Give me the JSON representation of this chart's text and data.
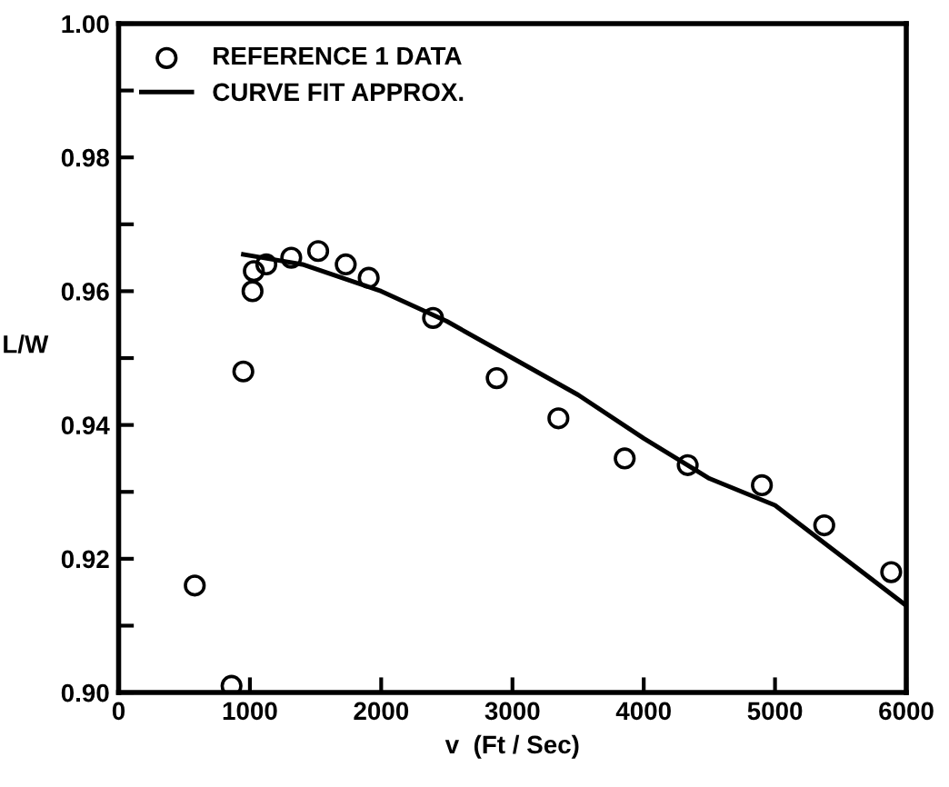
{
  "chart_data": {
    "type": "scatter",
    "xlabel": "v  (Ft / Sec)",
    "ylabel": "L/W",
    "xlim": [
      0,
      6000
    ],
    "ylim": [
      0.9,
      1.0
    ],
    "xticks": [
      0,
      1000,
      2000,
      3000,
      4000,
      5000,
      6000
    ],
    "yticks": [
      {
        "value": 0.9,
        "label": "0.90"
      },
      {
        "value": 0.91,
        "label": null
      },
      {
        "value": 0.92,
        "label": "0.92"
      },
      {
        "value": 0.93,
        "label": null
      },
      {
        "value": 0.94,
        "label": "0.94"
      },
      {
        "value": 0.95,
        "label": null
      },
      {
        "value": 0.96,
        "label": "0.96"
      },
      {
        "value": 0.97,
        "label": null
      },
      {
        "value": 0.98,
        "label": "0.98"
      },
      {
        "value": 0.99,
        "label": null
      },
      {
        "value": 1.0,
        "label": "1.00"
      }
    ],
    "grid": false,
    "legend": "top left",
    "series": [
      {
        "name": "REFERENCE 1 DATA",
        "marker": "circle",
        "color": "#000000",
        "x": [
          580,
          860,
          950,
          1020,
          1030,
          1125,
          1315,
          1520,
          1730,
          1905,
          2395,
          2880,
          3350,
          3855,
          4335,
          4900,
          5375,
          5885
        ],
        "values": [
          0.916,
          0.901,
          0.948,
          0.96,
          0.963,
          0.964,
          0.965,
          0.966,
          0.964,
          0.962,
          0.956,
          0.947,
          0.941,
          0.935,
          0.934,
          0.931,
          0.925,
          0.918
        ]
      },
      {
        "name": "CURVE FIT APPROX.",
        "type": "line",
        "marker": "none",
        "line_style": "solid",
        "color": "#000000",
        "x": [
          950,
          1100,
          1400,
          2000,
          2500,
          3000,
          3500,
          4000,
          4500,
          5000,
          5500,
          6000
        ],
        "values": [
          0.9655,
          0.965,
          0.964,
          0.96,
          0.9555,
          0.95,
          0.9445,
          0.938,
          0.932,
          0.928,
          0.9205,
          0.913
        ]
      }
    ]
  }
}
